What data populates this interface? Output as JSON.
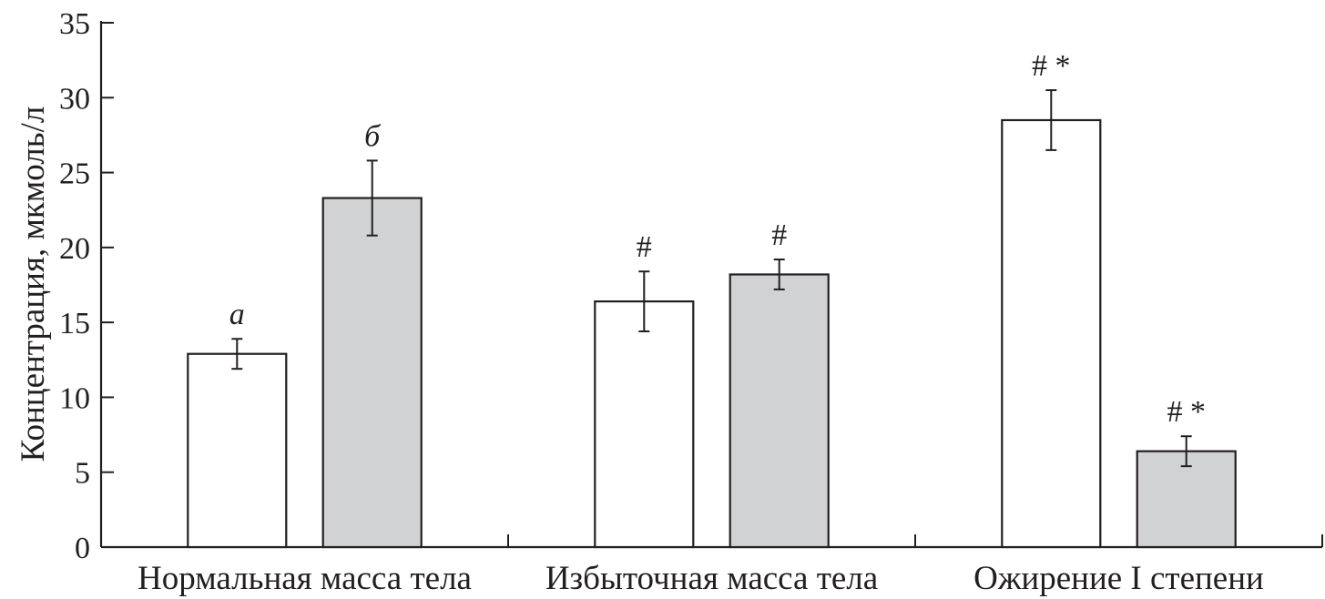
{
  "chart_data": {
    "type": "bar",
    "ylabel": "Концентрация, мкмоль/л",
    "ylim": [
      0,
      35
    ],
    "yticks": [
      0,
      5,
      10,
      15,
      20,
      25,
      30,
      35
    ],
    "categories": [
      "Нормальная масса тела",
      "Избыточная масса тела",
      "Ожирение I степени"
    ],
    "series": [
      {
        "color": "#ffffff",
        "values": [
          12.9,
          16.4,
          28.5
        ],
        "errors": [
          1.0,
          2.0,
          2.0
        ],
        "annotations": [
          "а",
          "#",
          "# *"
        ]
      },
      {
        "color": "#d1d2d4",
        "values": [
          23.3,
          18.2,
          6.4
        ],
        "errors": [
          2.5,
          1.0,
          1.0
        ],
        "annotations": [
          "б",
          "#",
          "# *"
        ]
      }
    ],
    "grid": false
  }
}
